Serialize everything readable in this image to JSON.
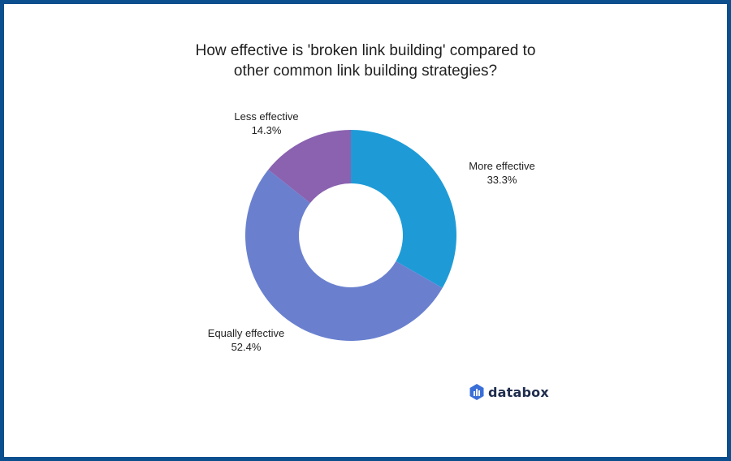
{
  "title": {
    "line1": "How effective is 'broken link building' compared to",
    "line2": "other common link building strategies?"
  },
  "chart_data": {
    "type": "pie",
    "style": "donut",
    "title": "How effective is 'broken link building' compared to other common link building strategies?",
    "slices": [
      {
        "label": "More effective",
        "value": 33.3,
        "value_label": "33.3%",
        "color": "#1e9bd7"
      },
      {
        "label": "Equally effective",
        "value": 52.4,
        "value_label": "52.4%",
        "color": "#6a80cf"
      },
      {
        "label": "Less effective",
        "value": 14.3,
        "value_label": "14.3%",
        "color": "#8a62b0"
      }
    ],
    "start": "top",
    "direction": "clockwise",
    "legend": "none"
  },
  "brand": {
    "name": "databox",
    "icon": "databox-logo-icon",
    "color": "#1f2d4d",
    "icon_color": "#3b6fd8"
  },
  "colors": {
    "frame": "#0b4f8e",
    "background": "#ffffff"
  }
}
